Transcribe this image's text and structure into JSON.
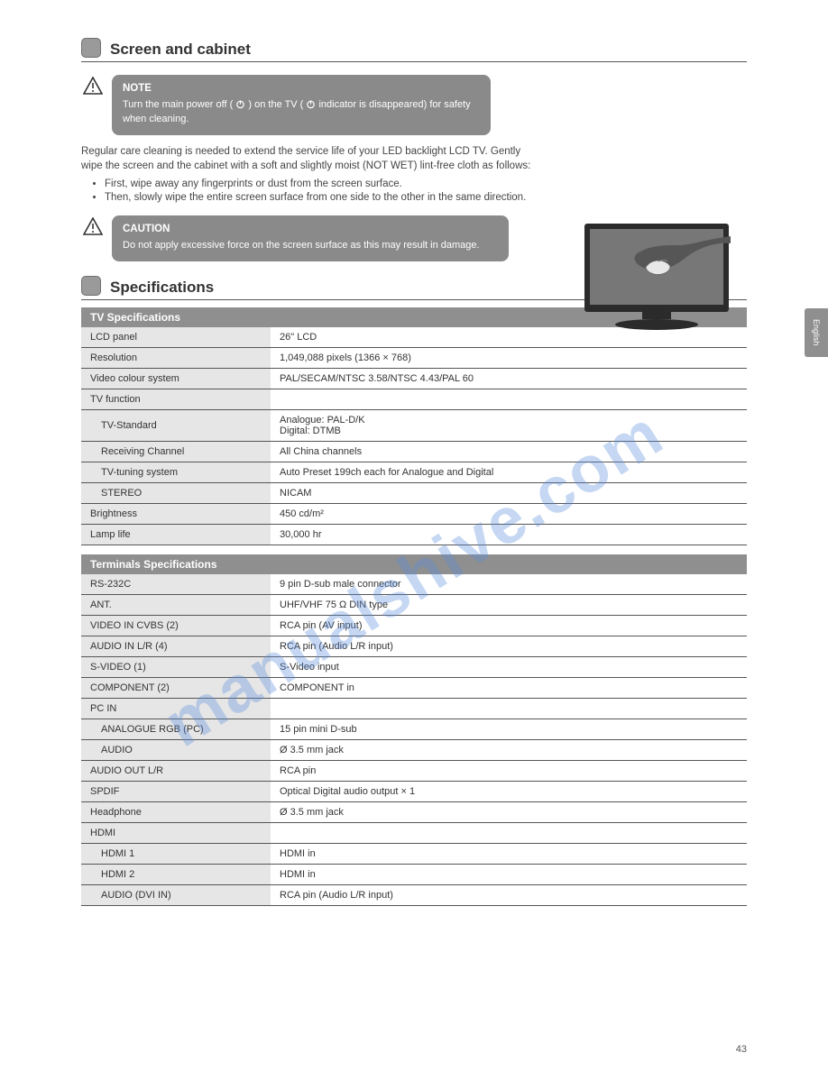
{
  "watermark": "manualshive.com",
  "page_number": "43",
  "side_tab": "English",
  "colors": {
    "grey_fill": "#8f8f8f",
    "light_grey": "#e6e6e6",
    "text": "#3a3a3a",
    "rule": "#555555",
    "watermark": "rgba(90,140,220,0.35)"
  },
  "section1": {
    "title": "Screen and cabinet",
    "note": {
      "title": "NOTE",
      "line1_pre": "Turn the main power off (",
      "line1_mid": ") on the TV (",
      "line1_post": " indicator is disappeared) for safety when cleaning."
    },
    "body": "Regular care cleaning is needed to extend the service life of your LED backlight LCD TV. Gently wipe the screen and the cabinet with a soft and slightly moist (NOT WET) lint-free cloth as follows:",
    "bullets": [
      "First, wipe away any fingerprints or dust from the screen surface.",
      "Then, slowly wipe the entire screen surface from one side to the other in the same direction."
    ],
    "caution": {
      "title": "CAUTION",
      "text": "Do not apply excessive force on the screen surface as this may result in damage."
    }
  },
  "section2": {
    "title": "Specifications"
  },
  "tv_group_header": "TV Specifications",
  "tv_specs": [
    {
      "k": "LCD panel",
      "v": "26\" LCD"
    },
    {
      "k": "Resolution",
      "v": "1,049,088 pixels (1366 × 768)"
    },
    {
      "k": "Video colour system",
      "v": "PAL/SECAM/NTSC 3.58/NTSC 4.43/PAL 60"
    },
    {
      "k": "TV function",
      "v": ""
    },
    {
      "k": "TV-Standard",
      "v": "Analogue: PAL-D/K\nDigital: DTMB",
      "sub": true
    },
    {
      "k": "Receiving Channel",
      "v": "All China channels",
      "sub": true
    },
    {
      "k": "TV-tuning system",
      "v": "Auto Preset 199ch each for Analogue and Digital",
      "sub": true
    },
    {
      "k": "STEREO",
      "v": "NICAM",
      "sub": true
    },
    {
      "k": "Brightness",
      "v": "450 cd/m²"
    },
    {
      "k": "Lamp life",
      "v": "30,000 hr"
    }
  ],
  "io_group_header": "Terminals Specifications",
  "io_specs": [
    {
      "k": "RS-232C",
      "v": "9 pin D-sub male connector"
    },
    {
      "k": "ANT.",
      "v": "UHF/VHF 75 Ω DIN type"
    },
    {
      "k": "VIDEO IN CVBS (2)",
      "v": "RCA pin (AV input)"
    },
    {
      "k": "AUDIO IN L/R (4)",
      "v": "RCA pin (Audio L/R input)"
    },
    {
      "k": "S-VIDEO (1)",
      "v": "S-Video input"
    },
    {
      "k": "COMPONENT (2)",
      "v": "COMPONENT in"
    },
    {
      "k": "PC IN",
      "v": ""
    },
    {
      "k": "ANALOGUE RGB (PC)",
      "v": "15 pin mini D-sub",
      "sub": true
    },
    {
      "k": "AUDIO",
      "v": "Ø 3.5 mm jack",
      "sub": true
    },
    {
      "k": "AUDIO OUT L/R",
      "v": "RCA pin"
    },
    {
      "k": "SPDIF",
      "v": "Optical Digital audio output × 1"
    },
    {
      "k": "Headphone",
      "v": "Ø 3.5 mm jack"
    },
    {
      "k": "HDMI",
      "v": ""
    },
    {
      "k": "HDMI 1",
      "v": "HDMI in",
      "sub": true
    },
    {
      "k": "HDMI 2",
      "v": "HDMI in",
      "sub": true
    },
    {
      "k": "AUDIO (DVI IN)",
      "v": "RCA pin (Audio L/R input)",
      "sub": true
    }
  ]
}
